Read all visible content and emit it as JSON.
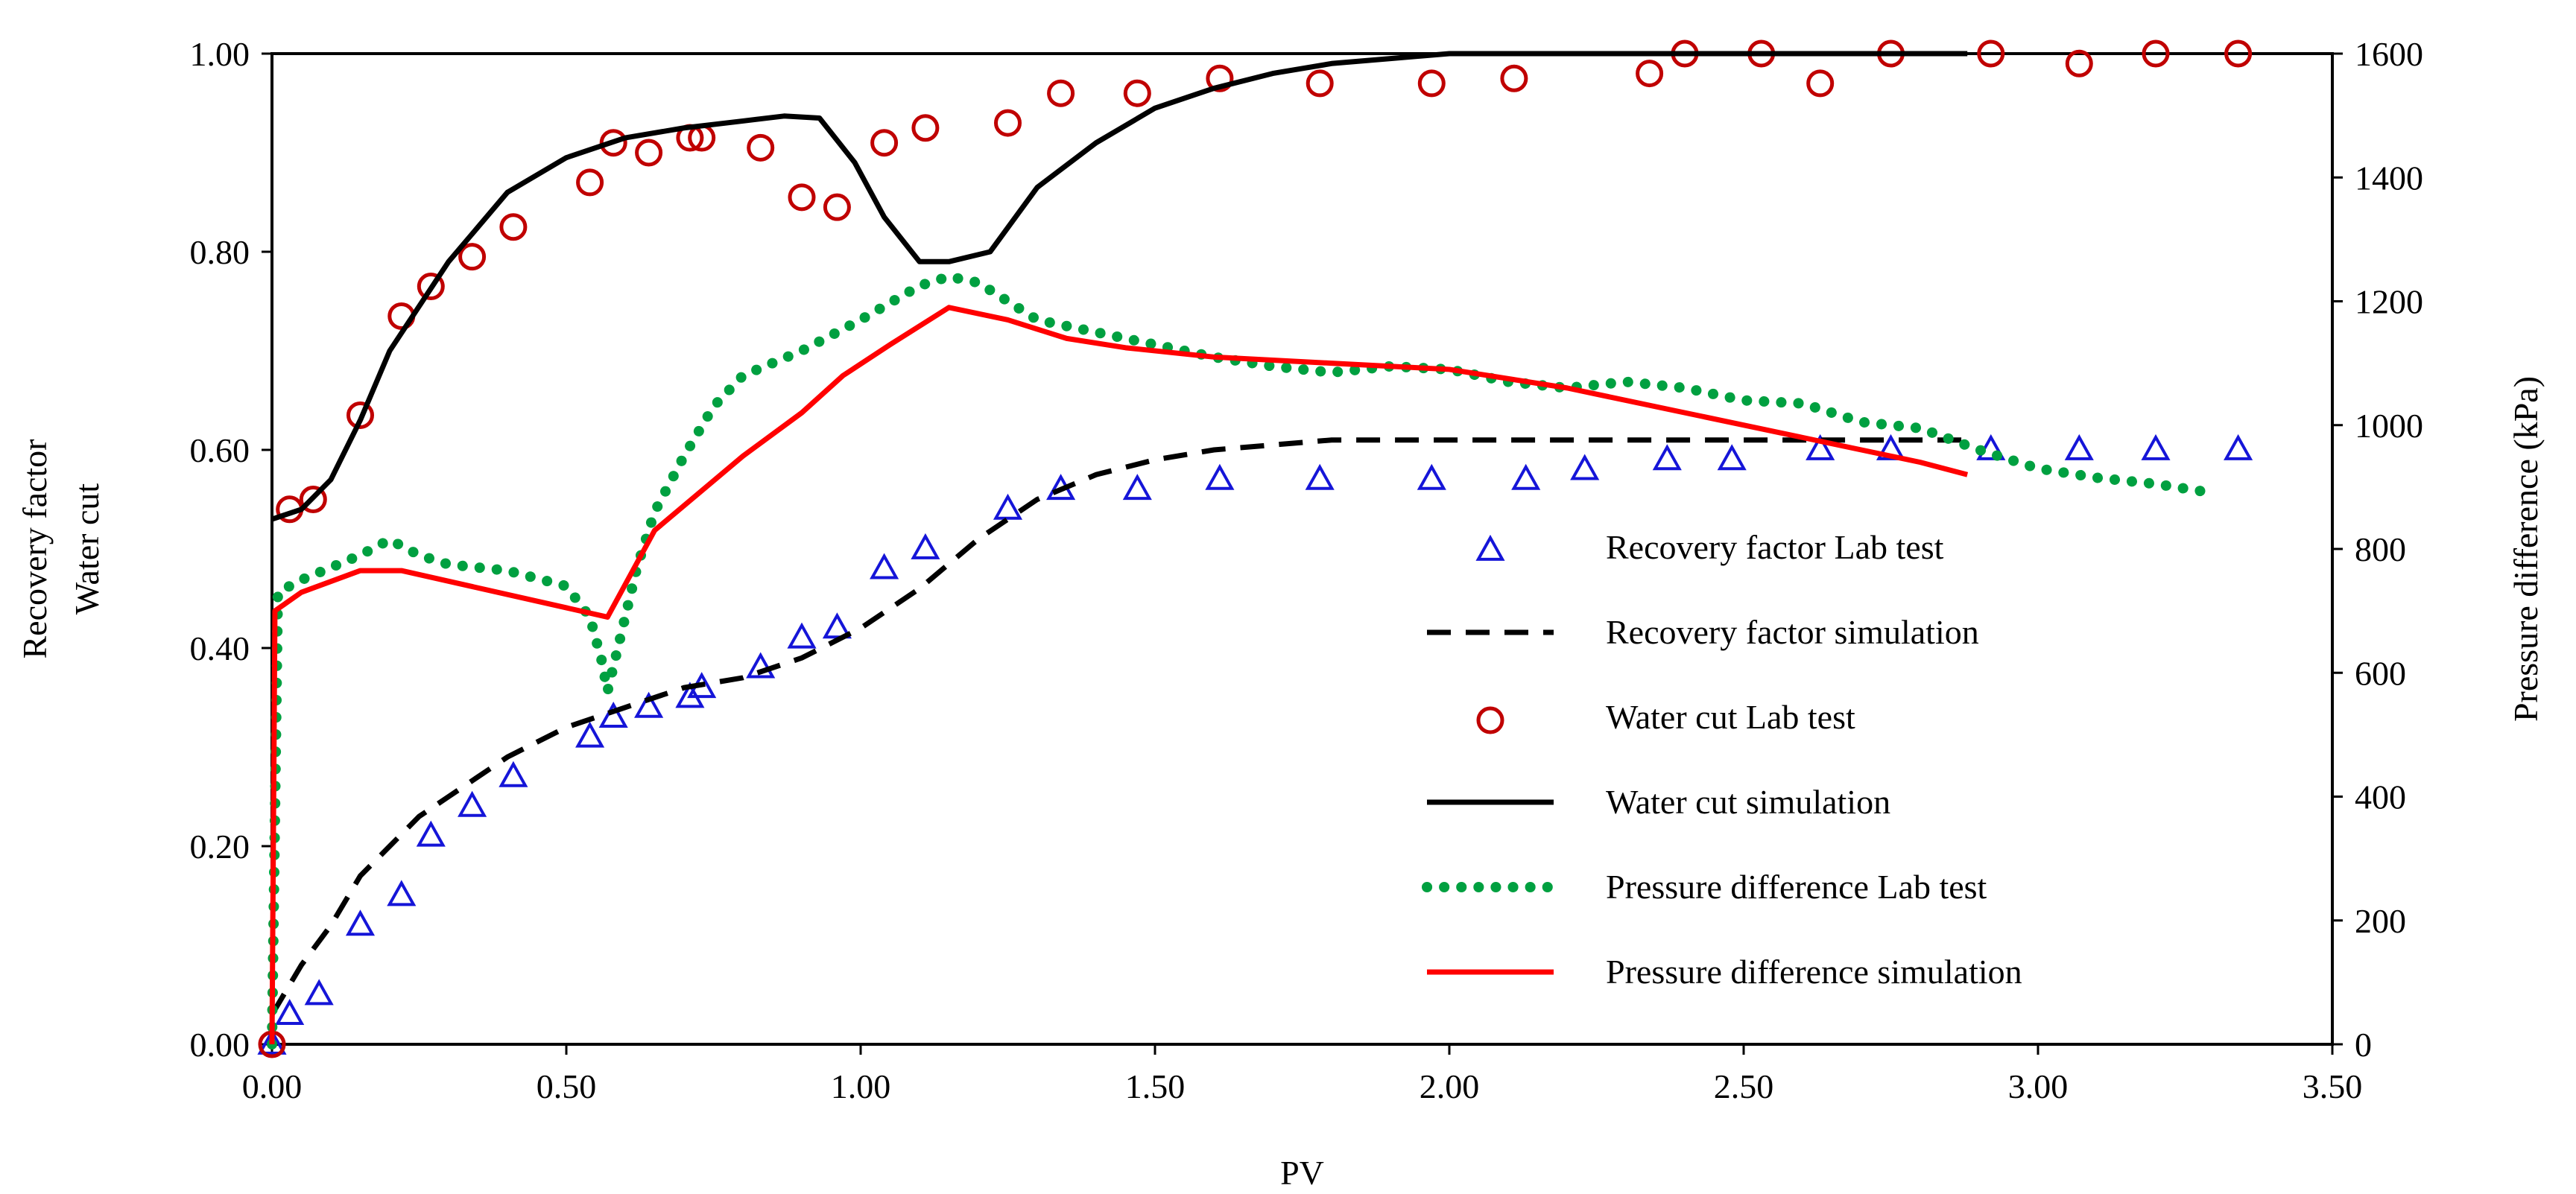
{
  "chart_data": {
    "type": "scatter",
    "title": "",
    "xlabel": "PV",
    "ylabel_lines": [
      "Recovery factor",
      "Water cut"
    ],
    "y2label": "Pressure difference (kPa)",
    "xlim": [
      0,
      3.5
    ],
    "ylim": [
      0,
      1.0
    ],
    "y2lim": [
      0,
      1600
    ],
    "xticks": [
      "0.00",
      "0.50",
      "1.00",
      "1.50",
      "2.00",
      "2.50",
      "3.00",
      "3.50"
    ],
    "yticks": [
      "0.00",
      "0.20",
      "0.40",
      "0.60",
      "0.80",
      "1.00"
    ],
    "y2ticks": [
      "0",
      "200",
      "400",
      "600",
      "800",
      "1000",
      "1200",
      "1400",
      "1600"
    ],
    "grid": false,
    "legend_position": "lower-right",
    "series": [
      {
        "name": "Recovery factor Lab test",
        "kind": "triangle-markers",
        "axis": "left",
        "color": "#1515d8",
        "x": [
          0.0,
          0.03,
          0.08,
          0.15,
          0.22,
          0.27,
          0.34,
          0.41,
          0.54,
          0.58,
          0.64,
          0.71,
          0.73,
          0.83,
          0.9,
          0.96,
          1.04,
          1.11,
          1.25,
          1.34,
          1.47,
          1.61,
          1.78,
          1.97,
          2.13,
          2.23,
          2.37,
          2.48,
          2.63,
          2.75,
          2.92,
          3.07,
          3.2,
          3.34
        ],
        "y": [
          0.0,
          0.03,
          0.05,
          0.12,
          0.15,
          0.21,
          0.24,
          0.27,
          0.31,
          0.33,
          0.34,
          0.35,
          0.36,
          0.38,
          0.41,
          0.42,
          0.48,
          0.5,
          0.54,
          0.56,
          0.56,
          0.57,
          0.57,
          0.57,
          0.57,
          0.58,
          0.59,
          0.59,
          0.6,
          0.6,
          0.6,
          0.6,
          0.6,
          0.6
        ]
      },
      {
        "name": "Recovery factor simulation",
        "kind": "dashed-line",
        "axis": "left",
        "color": "#000000",
        "x": [
          0.0,
          0.05,
          0.1,
          0.15,
          0.2,
          0.25,
          0.3,
          0.4,
          0.5,
          0.6,
          0.7,
          0.8,
          0.9,
          1.0,
          1.1,
          1.2,
          1.3,
          1.4,
          1.5,
          1.6,
          1.7,
          1.8,
          1.9,
          2.0,
          2.3,
          2.6,
          2.88
        ],
        "y": [
          0.03,
          0.08,
          0.12,
          0.17,
          0.2,
          0.23,
          0.25,
          0.29,
          0.32,
          0.34,
          0.36,
          0.37,
          0.39,
          0.42,
          0.46,
          0.51,
          0.55,
          0.575,
          0.59,
          0.6,
          0.605,
          0.61,
          0.61,
          0.61,
          0.61,
          0.61,
          0.61
        ]
      },
      {
        "name": "Water cut Lab test",
        "kind": "circle-markers",
        "axis": "left",
        "color": "#c00000",
        "x": [
          0.0,
          0.03,
          0.07,
          0.15,
          0.22,
          0.27,
          0.34,
          0.41,
          0.54,
          0.58,
          0.64,
          0.71,
          0.73,
          0.83,
          0.9,
          0.96,
          1.04,
          1.11,
          1.25,
          1.34,
          1.47,
          1.61,
          1.78,
          1.97,
          2.11,
          2.34,
          2.4,
          2.53,
          2.63,
          2.75,
          2.92,
          3.07,
          3.2,
          3.34
        ],
        "y": [
          0.0,
          0.54,
          0.55,
          0.635,
          0.735,
          0.765,
          0.795,
          0.825,
          0.87,
          0.91,
          0.9,
          0.915,
          0.915,
          0.905,
          0.855,
          0.845,
          0.91,
          0.925,
          0.93,
          0.96,
          0.96,
          0.975,
          0.97,
          0.97,
          0.975,
          0.98,
          1.0,
          1.0,
          0.97,
          1.0,
          1.0,
          0.99,
          1.0,
          1.0
        ]
      },
      {
        "name": "Water cut simulation",
        "kind": "solid-line",
        "axis": "left",
        "color": "#000000",
        "x": [
          0.0,
          0.05,
          0.1,
          0.15,
          0.2,
          0.3,
          0.4,
          0.5,
          0.6,
          0.7,
          0.8,
          0.87,
          0.93,
          0.99,
          1.04,
          1.1,
          1.15,
          1.22,
          1.3,
          1.4,
          1.5,
          1.6,
          1.7,
          1.8,
          1.9,
          2.0,
          2.2,
          2.5,
          2.88
        ],
        "y": [
          0.53,
          0.54,
          0.57,
          0.63,
          0.7,
          0.79,
          0.86,
          0.895,
          0.915,
          0.925,
          0.932,
          0.937,
          0.935,
          0.89,
          0.835,
          0.79,
          0.79,
          0.8,
          0.865,
          0.91,
          0.945,
          0.965,
          0.98,
          0.99,
          0.995,
          1.0,
          1.0,
          1.0,
          1.0
        ]
      },
      {
        "name": "Pressure difference Lab test",
        "kind": "dotted-line",
        "axis": "right",
        "color": "#00a040",
        "x": [
          0.0,
          0.01,
          0.05,
          0.1,
          0.15,
          0.2,
          0.25,
          0.3,
          0.4,
          0.5,
          0.54,
          0.56,
          0.57,
          0.59,
          0.62,
          0.65,
          0.7,
          0.75,
          0.8,
          0.9,
          1.0,
          1.1,
          1.15,
          1.2,
          1.3,
          1.4,
          1.5,
          1.6,
          1.7,
          1.8,
          1.9,
          2.0,
          2.1,
          2.2,
          2.3,
          2.4,
          2.5,
          2.6,
          2.7,
          2.8,
          2.9,
          3.0,
          3.1,
          3.2,
          3.3
        ],
        "y": [
          0,
          730,
          750,
          770,
          790,
          815,
          790,
          775,
          765,
          740,
          690,
          620,
          570,
          650,
          770,
          860,
          950,
          1030,
          1080,
          1120,
          1170,
          1225,
          1240,
          1230,
          1170,
          1150,
          1130,
          1110,
          1095,
          1085,
          1095,
          1090,
          1070,
          1060,
          1070,
          1060,
          1040,
          1035,
          1005,
          995,
          960,
          930,
          915,
          905,
          890
        ]
      },
      {
        "name": "Pressure difference simulation",
        "kind": "solid-line",
        "axis": "right",
        "color": "#ff0000",
        "x": [
          0.0,
          0.005,
          0.05,
          0.15,
          0.22,
          0.57,
          0.65,
          0.8,
          0.9,
          0.97,
          1.05,
          1.15,
          1.25,
          1.35,
          1.45,
          1.6,
          1.8,
          2.0,
          2.2,
          2.4,
          2.6,
          2.8,
          2.88
        ],
        "y": [
          0,
          700,
          730,
          765,
          765,
          690,
          830,
          950,
          1020,
          1080,
          1130,
          1190,
          1170,
          1140,
          1125,
          1110,
          1100,
          1090,
          1060,
          1020,
          980,
          940,
          920
        ]
      }
    ]
  }
}
